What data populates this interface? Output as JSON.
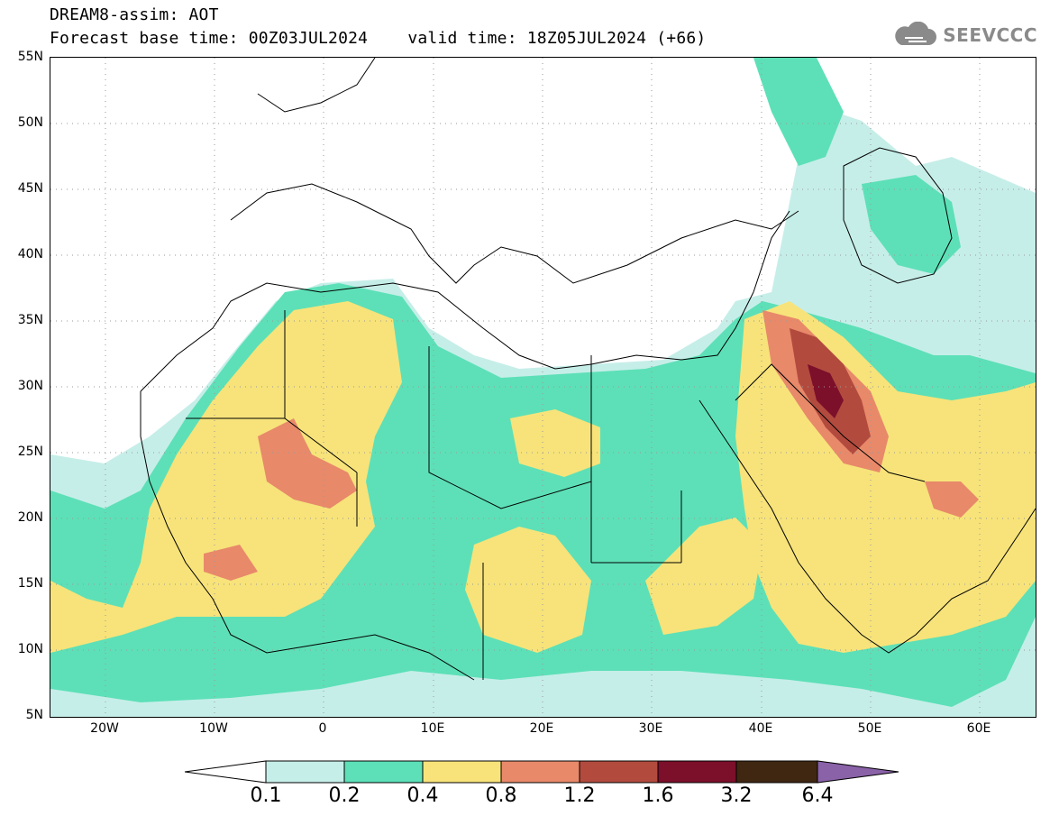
{
  "header": {
    "model_line": "DREAM8-assim: AOT",
    "time_line": "Forecast base time: 00Z03JUL2024    valid time: 18Z05JUL2024 (+66)"
  },
  "logo": {
    "text": "SEEVCCC",
    "icon": "cloud-icon",
    "color": "#8a8a8a"
  },
  "map": {
    "lat_labels": [
      "55N",
      "50N",
      "45N",
      "40N",
      "35N",
      "30N",
      "25N",
      "20N",
      "15N",
      "10N",
      "5N"
    ],
    "lon_labels": [
      "20W",
      "10W",
      "0",
      "10E",
      "20E",
      "30E",
      "40E",
      "50E",
      "60E"
    ],
    "grid": true,
    "variable": "AOT"
  },
  "colorbar": {
    "ticks": [
      "0.1",
      "0.2",
      "0.4",
      "0.8",
      "1.2",
      "1.6",
      "3.2",
      "6.4"
    ],
    "colors": [
      "#ffffff",
      "#c6eee9",
      "#5de0b7",
      "#f7e37a",
      "#e8896a",
      "#b24b3e",
      "#7c0f2a",
      "#3f2712",
      "#8a62a8"
    ]
  }
}
